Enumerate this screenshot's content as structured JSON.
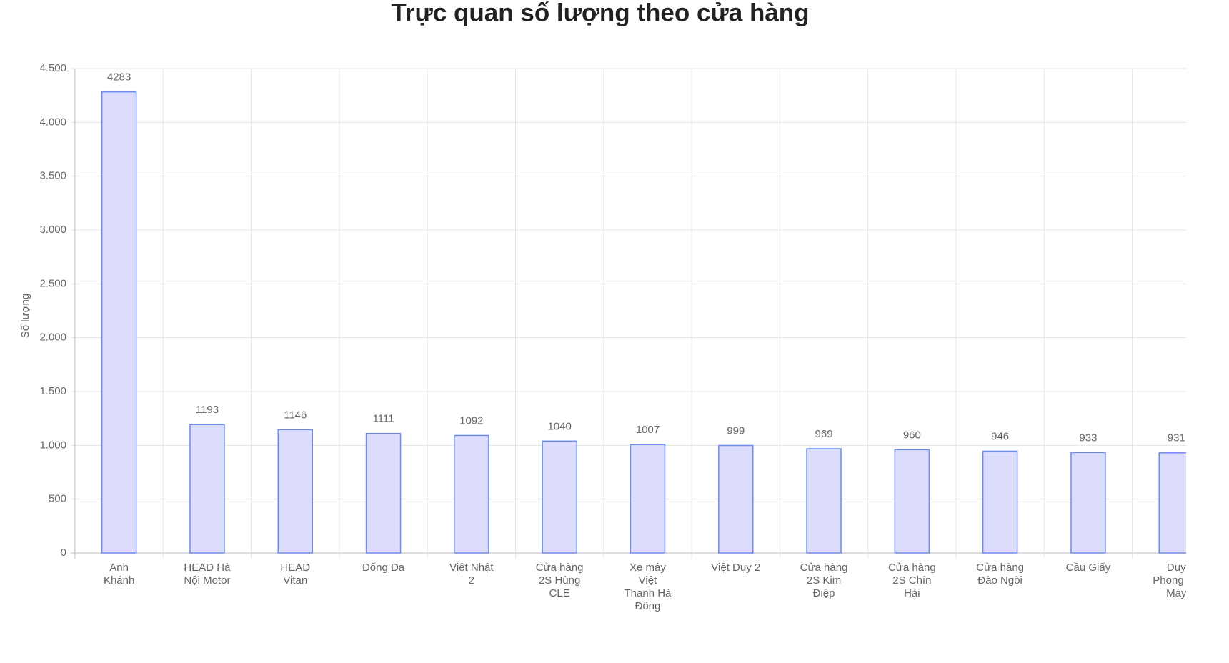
{
  "chart_data": {
    "type": "bar",
    "title": "Trực quan số lượng theo cửa hàng",
    "y_label": "Số lượng",
    "categories": [
      "Anh Khánh",
      "HEAD Hà Nội Motor",
      "HEAD Vitan",
      "Đống Đa",
      "Việt Nhật 2",
      "Cửa hàng 2S Hùng CLE",
      "Xe máy Việt Thanh Hà Đông",
      "Việt Duy 2",
      "Cửa hàng 2S Kim Điệp",
      "Cửa hàng 2S Chín Hải",
      "Cửa hàng Đào Ngòi",
      "Cầu Giấy",
      "Duy Phong Xe Máy"
    ],
    "values": [
      4283,
      1193,
      1146,
      1111,
      1092,
      1040,
      1007,
      999,
      969,
      960,
      946,
      933,
      931
    ],
    "color": "#dcdcfc",
    "border_color": "#6b8cf0",
    "ylim": [
      0,
      4500
    ],
    "yticks": [
      0,
      {
        "value": 500,
        "label": "500"
      },
      {
        "value": 1000,
        "label": "1.000"
      },
      {
        "value": 1500,
        "label": "1.500"
      },
      {
        "value": 2000,
        "label": "2.000"
      },
      {
        "value": 2500,
        "label": "2.500"
      },
      {
        "value": 3000,
        "label": "3.000"
      },
      {
        "value": 3500,
        "label": "3.500"
      },
      {
        "value": 4000,
        "label": "4.000"
      },
      {
        "value": 4500,
        "label": "4.500"
      }
    ],
    "grid": true
  }
}
